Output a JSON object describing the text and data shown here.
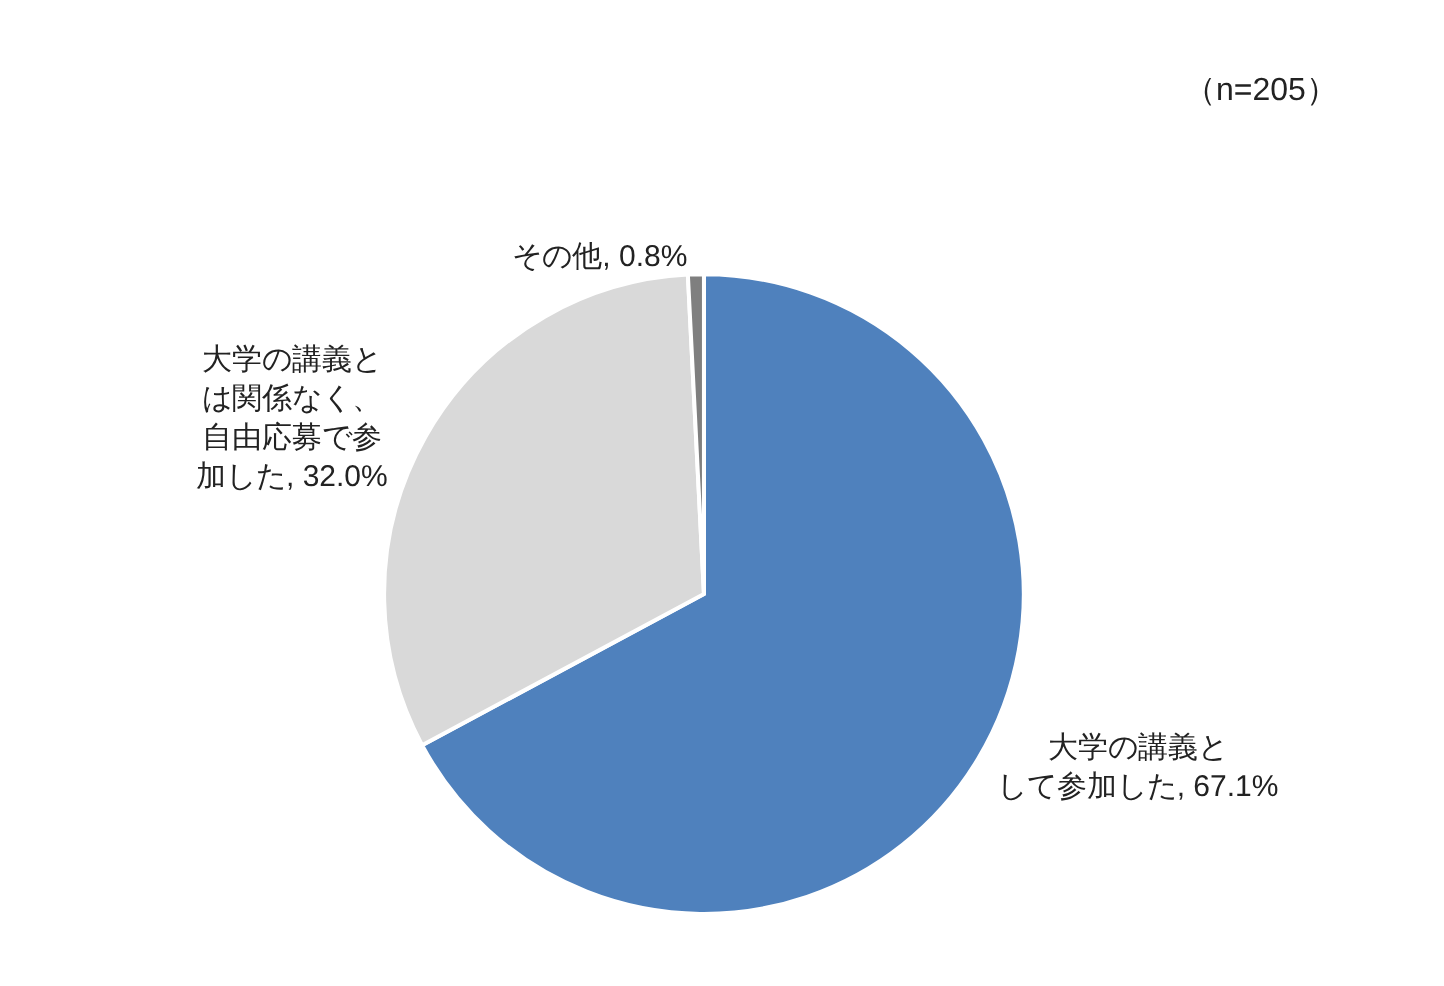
{
  "chart_data": {
    "type": "pie",
    "categories": [
      "大学の講義として参加した",
      "大学の講義とは関係なく、自由応募で参加した",
      "その他"
    ],
    "value_labels": [
      "67.1%",
      "32.0%",
      "0.8%"
    ],
    "values": [
      67.1,
      32.0,
      0.8
    ],
    "colors": [
      "#4f81bd",
      "#d9d9d9",
      "#7f7f7f"
    ],
    "annotations": [
      "（n=205）"
    ],
    "legend": false
  }
}
